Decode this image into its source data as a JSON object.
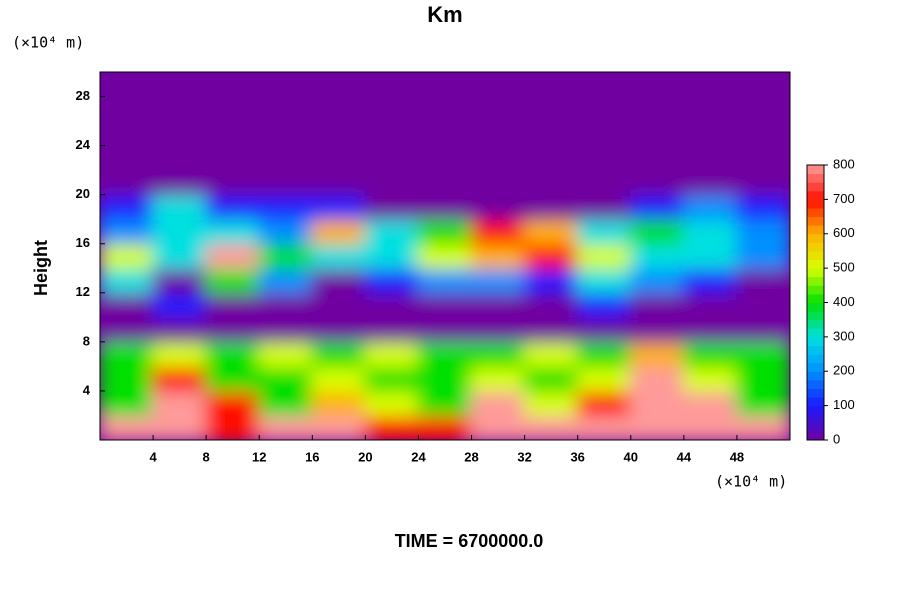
{
  "chart_data": {
    "type": "heatmap",
    "title": "Km",
    "ylabel": "Height",
    "x_unit": "(×10⁴ m)",
    "y_unit": "(×10⁴ m)",
    "footer": "TIME = 6700000.0",
    "xlim": [
      0,
      52
    ],
    "ylim": [
      0,
      30
    ],
    "xticks": [
      4,
      8,
      12,
      16,
      20,
      24,
      28,
      32,
      36,
      40,
      44,
      48
    ],
    "yticks": [
      4,
      8,
      12,
      16,
      20,
      24,
      28
    ],
    "x": [
      2,
      6,
      10,
      14,
      18,
      22,
      26,
      30,
      34,
      38,
      42,
      46,
      50
    ],
    "y": [
      1,
      3,
      5,
      7,
      9,
      11,
      13,
      15,
      17,
      19,
      21,
      23,
      25,
      27,
      29
    ],
    "z": [
      [
        800,
        800,
        700,
        800,
        800,
        700,
        700,
        800,
        800,
        800,
        800,
        800,
        800
      ],
      [
        400,
        800,
        700,
        400,
        600,
        500,
        400,
        800,
        500,
        700,
        800,
        800,
        400
      ],
      [
        400,
        700,
        400,
        400,
        500,
        400,
        400,
        500,
        400,
        500,
        800,
        500,
        400
      ],
      [
        400,
        500,
        400,
        500,
        400,
        500,
        400,
        400,
        500,
        400,
        600,
        400,
        400
      ],
      [
        0,
        0,
        0,
        0,
        0,
        0,
        0,
        0,
        0,
        0,
        0,
        0,
        0
      ],
      [
        0,
        100,
        0,
        0,
        0,
        0,
        0,
        0,
        0,
        100,
        0,
        0,
        0
      ],
      [
        300,
        0,
        400,
        200,
        0,
        100,
        200,
        200,
        100,
        300,
        200,
        100,
        0
      ],
      [
        500,
        300,
        800,
        400,
        300,
        300,
        500,
        600,
        700,
        500,
        300,
        300,
        200
      ],
      [
        200,
        300,
        300,
        200,
        600,
        300,
        400,
        700,
        600,
        300,
        400,
        300,
        200
      ],
      [
        100,
        300,
        100,
        100,
        100,
        0,
        0,
        0,
        0,
        0,
        100,
        200,
        100
      ],
      [
        0,
        0,
        0,
        0,
        0,
        0,
        0,
        0,
        0,
        0,
        0,
        0,
        0
      ],
      [
        0,
        0,
        0,
        0,
        0,
        0,
        0,
        0,
        0,
        0,
        0,
        0,
        0
      ],
      [
        0,
        0,
        0,
        0,
        0,
        0,
        0,
        0,
        0,
        0,
        0,
        0,
        0
      ],
      [
        0,
        0,
        0,
        0,
        0,
        0,
        0,
        0,
        0,
        0,
        0,
        0,
        0
      ],
      [
        0,
        0,
        0,
        0,
        0,
        0,
        0,
        0,
        0,
        0,
        0,
        0,
        0
      ]
    ],
    "colorbar_ticks": [
      0,
      100,
      200,
      300,
      400,
      500,
      600,
      700,
      800
    ],
    "colorscale": [
      "#7000a0",
      "#1a1aff",
      "#0090ff",
      "#00e0e0",
      "#00e000",
      "#d8ff00",
      "#ffb000",
      "#ff1000",
      "#ff9a9a"
    ]
  }
}
